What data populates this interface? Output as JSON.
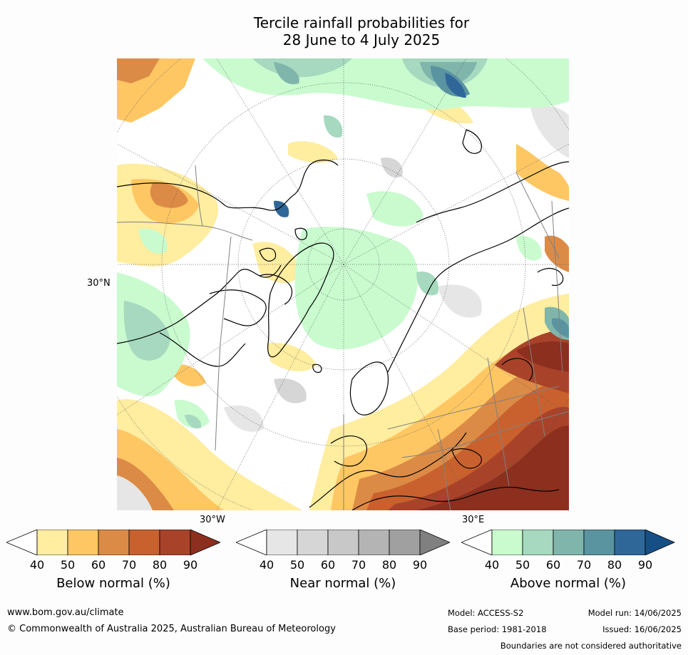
{
  "title": {
    "line1": "Tercile rainfall probabilities for",
    "line2": "28 June to 4 July 2025"
  },
  "map": {
    "latitude_label": "30°N",
    "longitude_labels": [
      "30°W",
      "30°E"
    ],
    "colors": {
      "land_outline": "#000000",
      "country_border": "#808080",
      "ocean_background": "#ffffff"
    }
  },
  "colorbars": [
    {
      "label": "Below normal (%)",
      "ticks": [
        "40",
        "50",
        "60",
        "70",
        "80",
        "90"
      ],
      "colors": [
        "#ffffff",
        "#ffeda0",
        "#fec763",
        "#dc8b46",
        "#c9612e",
        "#a8432a",
        "#8c2f1e"
      ]
    },
    {
      "label": "Near normal (%)",
      "ticks": [
        "40",
        "50",
        "60",
        "70",
        "80",
        "90"
      ],
      "colors": [
        "#ffffff",
        "#e6e6e6",
        "#d6d6d6",
        "#c8c8c8",
        "#b4b4b4",
        "#a0a0a0",
        "#808080"
      ]
    },
    {
      "label": "Above normal (%)",
      "ticks": [
        "40",
        "50",
        "60",
        "70",
        "80",
        "90"
      ],
      "colors": [
        "#ffffff",
        "#c9fbcf",
        "#a6d9bf",
        "#80b5ab",
        "#5a94a0",
        "#306799",
        "#164f86"
      ]
    }
  ],
  "footer": {
    "website": "www.bom.gov.au/climate",
    "copyright": "© Commonwealth of Australia 2025, Australian Bureau of Meteorology",
    "model": "Model: ACCESS-S2",
    "base_period": "Base period: 1981-2018",
    "model_run": "Model run: 14/06/2025",
    "issued": "Issued: 16/06/2025",
    "disclaimer": "Boundaries are not considered authoritative"
  }
}
